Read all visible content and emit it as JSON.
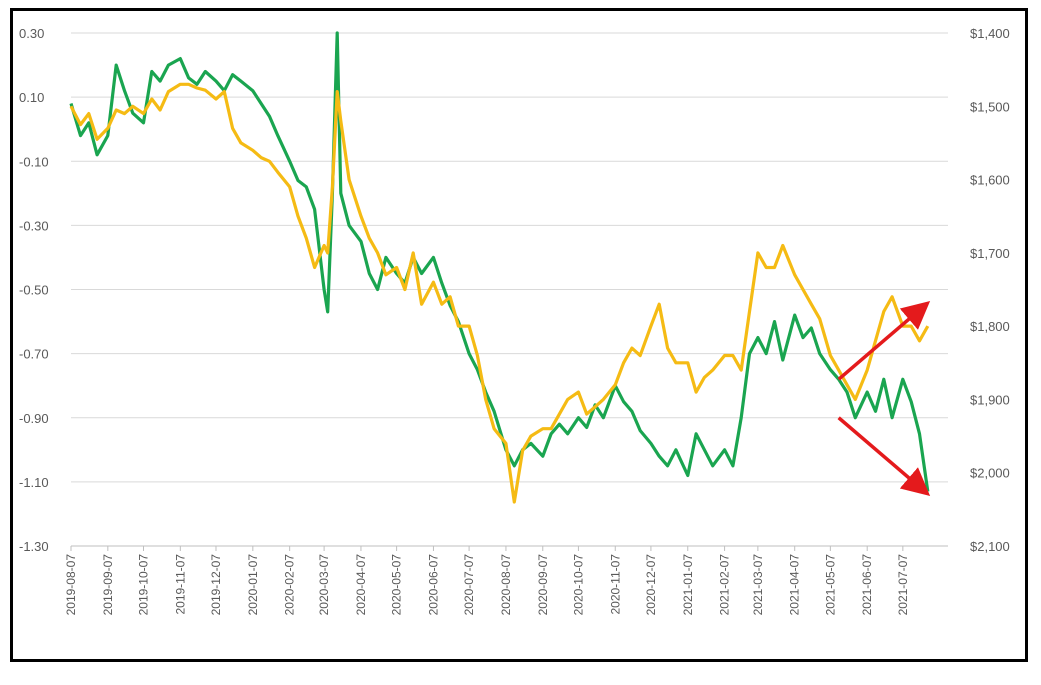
{
  "chart_data": {
    "type": "line",
    "title": "",
    "xlabel": "",
    "ylabel": "",
    "y_left": {
      "ylim": [
        -1.3,
        0.3
      ],
      "ticks": [
        "0.30",
        "0.10",
        "-0.10",
        "-0.30",
        "-0.50",
        "-0.70",
        "-0.90",
        "-1.10",
        "-1.30"
      ]
    },
    "y_right": {
      "ylim": [
        1400,
        2100
      ],
      "inverted": true,
      "ticks": [
        "$1,400",
        "$1,500",
        "$1,600",
        "$1,700",
        "$1,800",
        "$1,900",
        "$2,000",
        "$2,100"
      ]
    },
    "x_ticks": [
      "2019-08-07",
      "2019-09-07",
      "2019-10-07",
      "2019-11-07",
      "2019-12-07",
      "2020-01-07",
      "2020-02-07",
      "2020-03-07",
      "2020-04-07",
      "2020-05-07",
      "2020-06-07",
      "2020-07-07",
      "2020-08-07",
      "2020-09-07",
      "2020-10-07",
      "2020-11-07",
      "2020-12-07",
      "2021-01-07",
      "2021-02-07",
      "2021-03-07",
      "2021-04-07",
      "2021-05-07",
      "2021-06-07",
      "2021-07-07"
    ],
    "grid": true,
    "colors": {
      "green_series": "#1aa550",
      "gold_series": "#f5bb14",
      "arrows": "#e41a1c",
      "grid": "#d9d9d9",
      "frame": "#000000"
    },
    "series": [
      {
        "axis": "left",
        "color": "#1aa550",
        "x": [
          "2019-08-07",
          "2019-08-15",
          "2019-08-22",
          "2019-08-29",
          "2019-09-07",
          "2019-09-14",
          "2019-09-21",
          "2019-09-28",
          "2019-10-07",
          "2019-10-14",
          "2019-10-21",
          "2019-10-28",
          "2019-11-07",
          "2019-11-14",
          "2019-11-21",
          "2019-11-28",
          "2019-12-07",
          "2019-12-14",
          "2019-12-21",
          "2019-12-28",
          "2020-01-07",
          "2020-01-14",
          "2020-01-21",
          "2020-01-28",
          "2020-02-07",
          "2020-02-14",
          "2020-02-21",
          "2020-02-28",
          "2020-03-07",
          "2020-03-10",
          "2020-03-14",
          "2020-03-18",
          "2020-03-21",
          "2020-03-28",
          "2020-04-07",
          "2020-04-14",
          "2020-04-21",
          "2020-04-28",
          "2020-05-07",
          "2020-05-14",
          "2020-05-21",
          "2020-05-28",
          "2020-06-07",
          "2020-06-14",
          "2020-06-21",
          "2020-06-28",
          "2020-07-07",
          "2020-07-14",
          "2020-07-21",
          "2020-07-28",
          "2020-08-07",
          "2020-08-14",
          "2020-08-21",
          "2020-08-28",
          "2020-09-07",
          "2020-09-14",
          "2020-09-21",
          "2020-09-28",
          "2020-10-07",
          "2020-10-14",
          "2020-10-21",
          "2020-10-28",
          "2020-11-07",
          "2020-11-14",
          "2020-11-21",
          "2020-11-28",
          "2020-12-07",
          "2020-12-14",
          "2020-12-21",
          "2020-12-28",
          "2021-01-07",
          "2021-01-14",
          "2021-01-21",
          "2021-01-28",
          "2021-02-07",
          "2021-02-14",
          "2021-02-21",
          "2021-02-28",
          "2021-03-07",
          "2021-03-14",
          "2021-03-21",
          "2021-03-28",
          "2021-04-07",
          "2021-04-14",
          "2021-04-21",
          "2021-04-28",
          "2021-05-07",
          "2021-05-14",
          "2021-05-21",
          "2021-05-28",
          "2021-06-07",
          "2021-06-14",
          "2021-06-21",
          "2021-06-28",
          "2021-07-07",
          "2021-07-14",
          "2021-07-21",
          "2021-07-28"
        ],
        "values": [
          0.08,
          -0.02,
          0.02,
          -0.08,
          -0.02,
          0.2,
          0.12,
          0.05,
          0.02,
          0.18,
          0.15,
          0.2,
          0.22,
          0.16,
          0.14,
          0.18,
          0.15,
          0.12,
          0.17,
          0.15,
          0.12,
          0.08,
          0.04,
          -0.02,
          -0.1,
          -0.16,
          -0.18,
          -0.25,
          -0.5,
          -0.57,
          -0.2,
          0.3,
          -0.2,
          -0.3,
          -0.35,
          -0.45,
          -0.5,
          -0.4,
          -0.45,
          -0.48,
          -0.4,
          -0.45,
          -0.4,
          -0.48,
          -0.55,
          -0.6,
          -0.7,
          -0.75,
          -0.82,
          -0.88,
          -1.0,
          -1.05,
          -1.0,
          -0.98,
          -1.02,
          -0.95,
          -0.92,
          -0.95,
          -0.9,
          -0.93,
          -0.86,
          -0.9,
          -0.8,
          -0.85,
          -0.88,
          -0.94,
          -0.98,
          -1.02,
          -1.05,
          -1.0,
          -1.08,
          -0.95,
          -1.0,
          -1.05,
          -1.0,
          -1.05,
          -0.9,
          -0.7,
          -0.65,
          -0.7,
          -0.6,
          -0.72,
          -0.58,
          -0.65,
          -0.62,
          -0.7,
          -0.75,
          -0.78,
          -0.82,
          -0.9,
          -0.82,
          -0.88,
          -0.78,
          -0.9,
          -0.78,
          -0.85,
          -0.95,
          -1.13
        ]
      },
      {
        "axis": "right",
        "color": "#f5bb14",
        "x": [
          "2019-08-07",
          "2019-08-15",
          "2019-08-22",
          "2019-08-29",
          "2019-09-07",
          "2019-09-14",
          "2019-09-21",
          "2019-09-28",
          "2019-10-07",
          "2019-10-14",
          "2019-10-21",
          "2019-10-28",
          "2019-11-07",
          "2019-11-14",
          "2019-11-21",
          "2019-11-28",
          "2019-12-07",
          "2019-12-14",
          "2019-12-21",
          "2019-12-28",
          "2020-01-07",
          "2020-01-14",
          "2020-01-21",
          "2020-01-28",
          "2020-02-07",
          "2020-02-14",
          "2020-02-21",
          "2020-02-28",
          "2020-03-07",
          "2020-03-10",
          "2020-03-14",
          "2020-03-18",
          "2020-03-21",
          "2020-03-28",
          "2020-04-07",
          "2020-04-14",
          "2020-04-21",
          "2020-04-28",
          "2020-05-07",
          "2020-05-14",
          "2020-05-21",
          "2020-05-28",
          "2020-06-07",
          "2020-06-14",
          "2020-06-21",
          "2020-06-28",
          "2020-07-07",
          "2020-07-14",
          "2020-07-21",
          "2020-07-28",
          "2020-08-07",
          "2020-08-14",
          "2020-08-21",
          "2020-08-28",
          "2020-09-07",
          "2020-09-14",
          "2020-09-21",
          "2020-09-28",
          "2020-10-07",
          "2020-10-14",
          "2020-10-21",
          "2020-10-28",
          "2020-11-07",
          "2020-11-14",
          "2020-11-21",
          "2020-11-28",
          "2020-12-07",
          "2020-12-14",
          "2020-12-21",
          "2020-12-28",
          "2021-01-07",
          "2021-01-14",
          "2021-01-21",
          "2021-01-28",
          "2021-02-07",
          "2021-02-14",
          "2021-02-21",
          "2021-02-28",
          "2021-03-07",
          "2021-03-14",
          "2021-03-21",
          "2021-03-28",
          "2021-04-07",
          "2021-04-14",
          "2021-04-21",
          "2021-04-28",
          "2021-05-07",
          "2021-05-14",
          "2021-05-21",
          "2021-05-28",
          "2021-06-07",
          "2021-06-14",
          "2021-06-21",
          "2021-06-28",
          "2021-07-07",
          "2021-07-14",
          "2021-07-21",
          "2021-07-28"
        ],
        "values": [
          1500,
          1525,
          1510,
          1545,
          1530,
          1505,
          1510,
          1500,
          1510,
          1490,
          1505,
          1480,
          1470,
          1470,
          1475,
          1478,
          1490,
          1480,
          1530,
          1550,
          1560,
          1570,
          1575,
          1590,
          1610,
          1650,
          1680,
          1720,
          1690,
          1700,
          1610,
          1480,
          1520,
          1600,
          1650,
          1680,
          1700,
          1730,
          1720,
          1750,
          1700,
          1770,
          1740,
          1770,
          1760,
          1800,
          1800,
          1840,
          1900,
          1940,
          1960,
          2040,
          1970,
          1950,
          1940,
          1940,
          1920,
          1900,
          1890,
          1920,
          1910,
          1900,
          1880,
          1850,
          1830,
          1840,
          1800,
          1770,
          1830,
          1850,
          1850,
          1890,
          1870,
          1860,
          1840,
          1840,
          1860,
          1780,
          1700,
          1720,
          1720,
          1690,
          1730,
          1750,
          1770,
          1790,
          1840,
          1860,
          1880,
          1900,
          1860,
          1820,
          1780,
          1760,
          1800,
          1800,
          1820,
          1800
        ]
      }
    ],
    "arrows": [
      {
        "direction": "up",
        "from": {
          "x": "2021-05-14",
          "y": -0.78
        },
        "to": {
          "x": "2021-07-28",
          "y": -0.55
        }
      },
      {
        "direction": "down",
        "from": {
          "x": "2021-05-14",
          "y": -0.9
        },
        "to": {
          "x": "2021-07-28",
          "y": -1.13
        }
      }
    ]
  }
}
